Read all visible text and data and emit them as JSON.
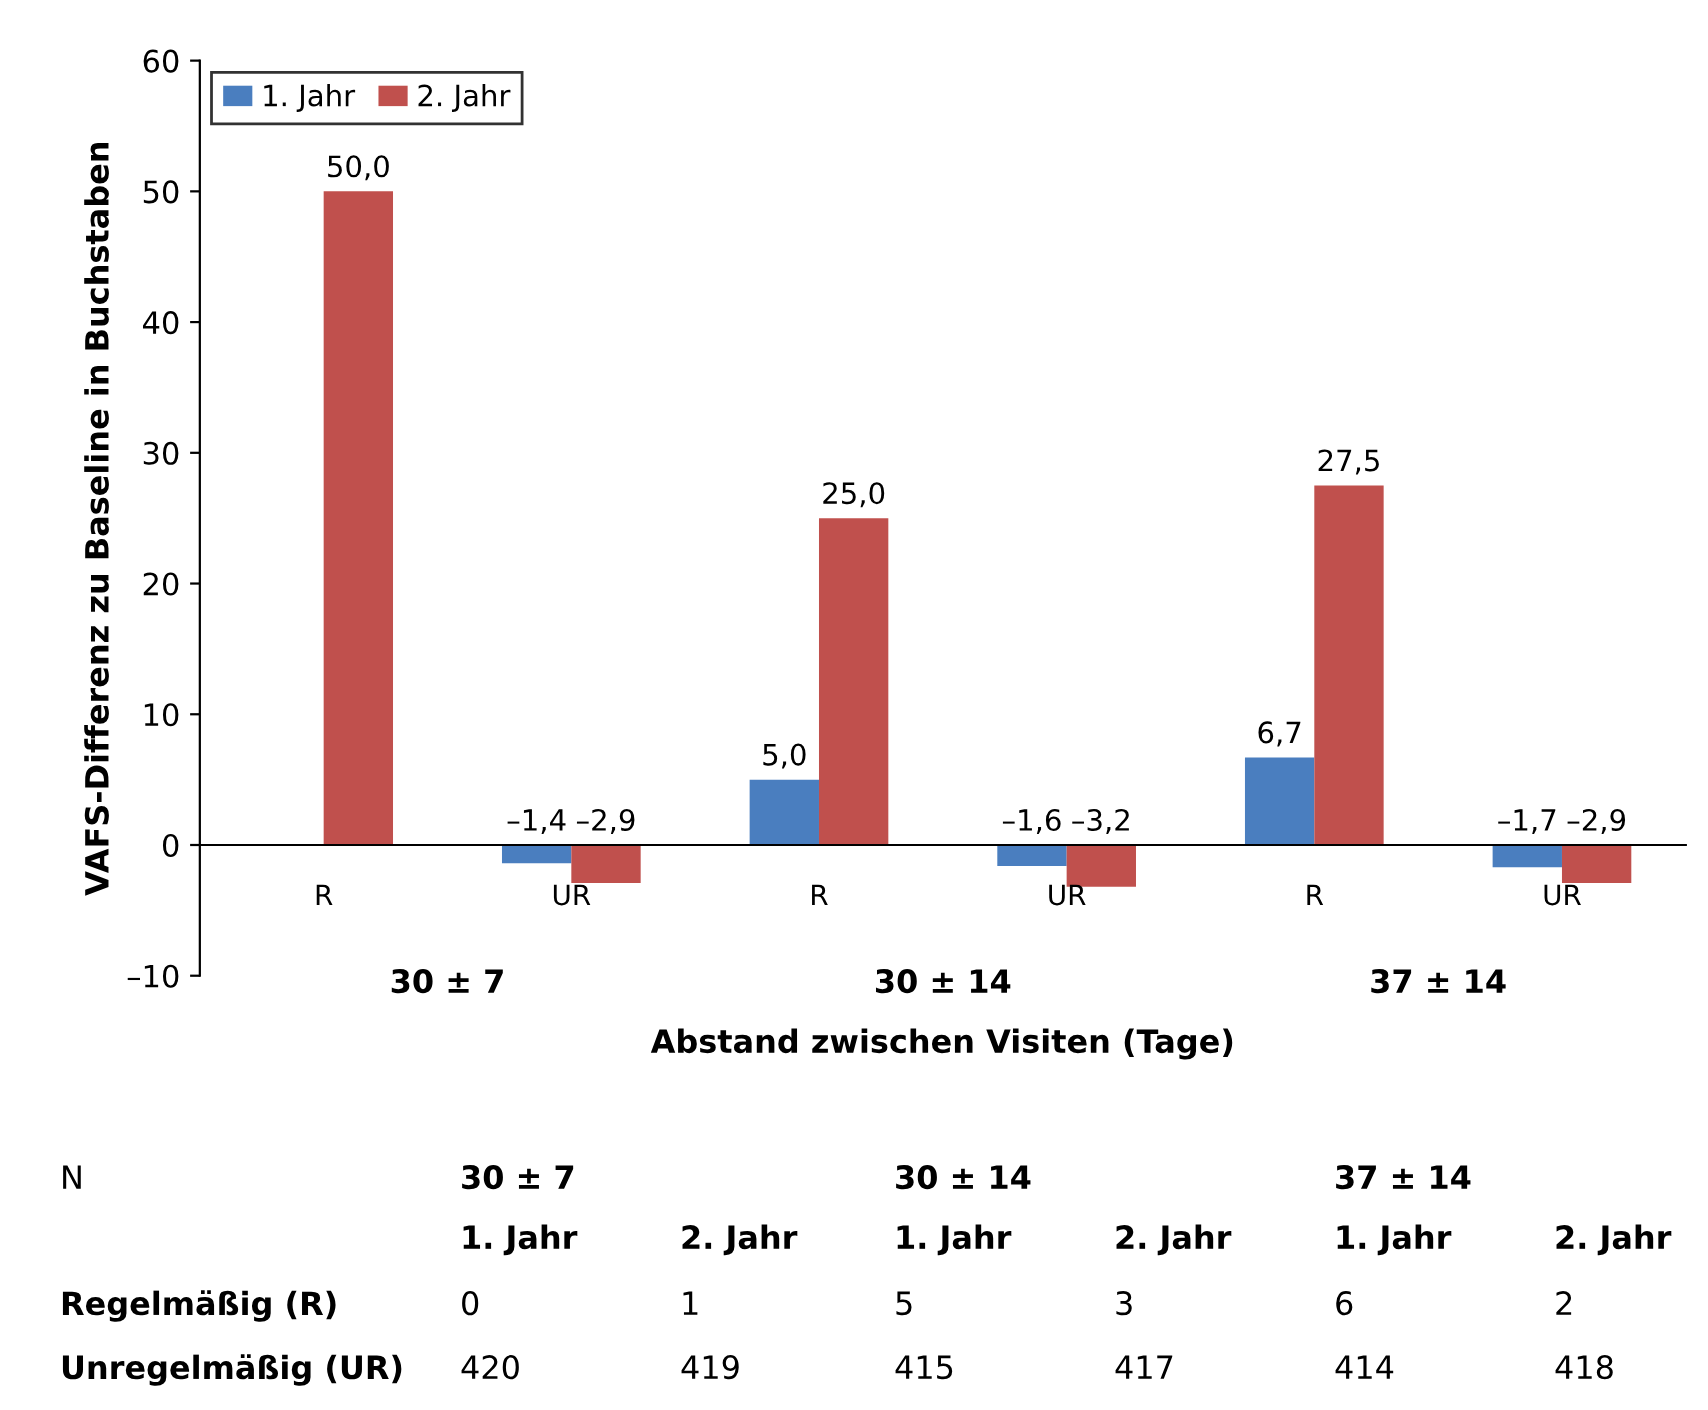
{
  "chart_data": {
    "type": "bar",
    "ylabel": "VAFS-Differenz zu Baseline in Buchstaben",
    "xlabel": "Abstand zwischen Visiten (Tage)",
    "categories": [
      "R",
      "UR",
      "R",
      "UR",
      "R",
      "UR"
    ],
    "series": [
      {
        "name": "1. Jahr",
        "color": "#4a7ebf",
        "values": [
          0,
          -1.4,
          5.0,
          -1.6,
          6.7,
          -1.7
        ],
        "value_labels": [
          null,
          "–1,4",
          "5,0",
          "–1,6",
          "6,7",
          "–1,7"
        ]
      },
      {
        "name": "2. Jahr",
        "color": "#c0504d",
        "values": [
          50.0,
          -2.9,
          25.0,
          -3.2,
          27.5,
          -2.9
        ],
        "value_labels": [
          "50,0",
          "–2,9",
          "25,0",
          "–3,2",
          "27,5",
          "–2,9"
        ]
      }
    ],
    "ylim": [
      -10,
      60
    ],
    "yticks": [
      {
        "value": -10,
        "label": "–10"
      },
      0,
      10,
      20,
      30,
      40,
      50,
      60
    ],
    "grid": false,
    "legend": "top left",
    "annotations": [
      "30 ± 7",
      "30 ± 14",
      "37 ± 14",
      "N",
      "30 ± 7",
      "30 ± 14",
      "37 ± 14",
      "1. Jahr",
      "2. Jahr",
      "1. Jahr",
      "2. Jahr",
      "1. Jahr",
      "2. Jahr",
      "Regelmäßig (R)",
      "0",
      "1",
      "5",
      "3",
      "6",
      "2",
      "Unregelmäßig (UR)",
      "420",
      "419",
      "415",
      "417",
      "414",
      "418"
    ]
  }
}
